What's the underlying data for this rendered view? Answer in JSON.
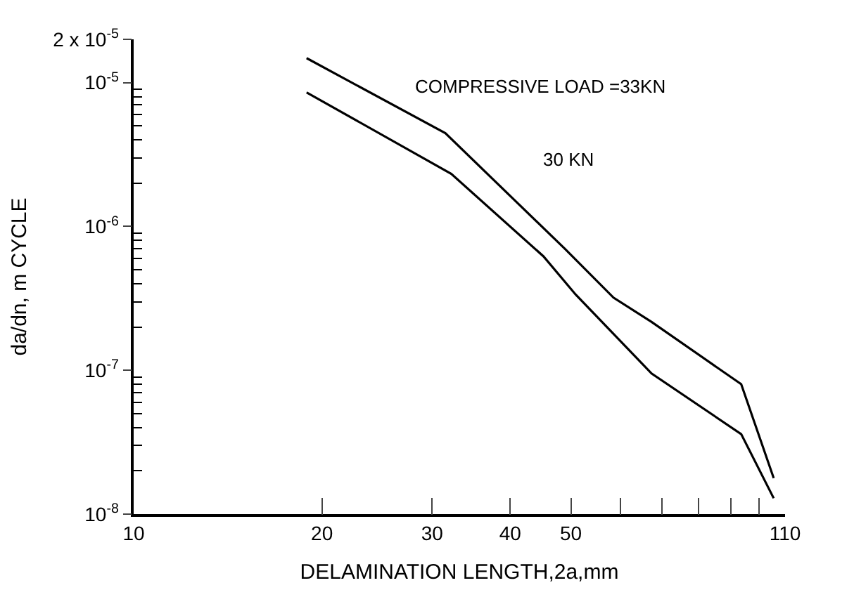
{
  "chart_data": {
    "type": "line",
    "xlabel": "DELAMINATION LENGTH,2a,mm",
    "ylabel": "da/dn, m CYCLE",
    "log": "xy",
    "xlim": [
      10,
      110
    ],
    "xticks": [
      10,
      20,
      30,
      40,
      50,
      {
        "value": 60,
        "label": null
      },
      {
        "value": 70,
        "label": null
      },
      {
        "value": 80,
        "label": null
      },
      {
        "value": 90,
        "label": null
      },
      {
        "value": 100,
        "label": null
      },
      110
    ],
    "ylim": [
      1e-08,
      2e-05
    ],
    "yticks": [
      {
        "value": 1e-08,
        "label": "10$^{-8}$"
      },
      {
        "value": 1e-07,
        "label": "10$^{-7}$"
      },
      {
        "value": 1e-06,
        "label": "10$^{-6}$"
      },
      {
        "value": 1e-05,
        "label": "10$^{-5}$"
      },
      {
        "value": 2e-05,
        "label": "2 x 10$^{-5}$"
      }
    ],
    "annotations": [
      "COMPRESSIVE LOAD =33KN",
      "30 KN"
    ],
    "legend": false,
    "marker": "none",
    "line_style": "solid",
    "series": [
      {
        "color": "#000000",
        "x": [
          18.9,
          31.5,
          48.9,
          58.5,
          67.3,
          93.6,
          105.5
        ],
        "values": [
          1.48e-05,
          4.45e-06,
          7e-07,
          3.2e-07,
          2.17e-07,
          8e-08,
          1.78e-08
        ]
      },
      {
        "color": "#000000",
        "x": [
          18.9,
          32.2,
          45.2,
          50.9,
          67.3,
          93.6,
          105.5
        ],
        "values": [
          8.55e-06,
          2.32e-06,
          6.2e-07,
          3.36e-07,
          9.5e-08,
          3.6e-08,
          1.29e-08
        ]
      }
    ]
  }
}
